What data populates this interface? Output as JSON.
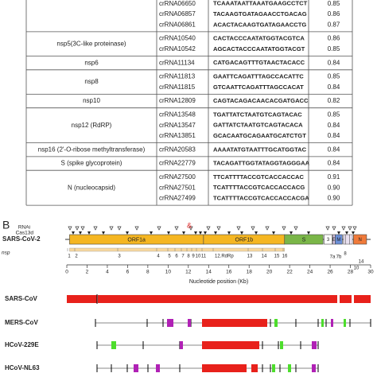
{
  "table": {
    "groups": [
      {
        "rows": [
          [
            "crRNA06650",
            "TCAAATAATTAAATGAAGCCTCT",
            "0.85"
          ],
          [
            "crRNA06857",
            "TACAAGTGATAGAACCTGACAG",
            "0.86"
          ],
          [
            "crRNA06861",
            "ACACTACAAGTGATAGAACCTG",
            "0.87"
          ]
        ]
      },
      {
        "gene": "nsp5(3C-like proteinase)",
        "rows": [
          [
            "crRNA10540",
            "CACTACCCAATATGGTACGTCA",
            "0.86"
          ],
          [
            "crRNA10542",
            "AGCACTACCCAATATGGTACGT",
            "0.85"
          ]
        ]
      },
      {
        "gene": "nsp6",
        "rows": [
          [
            "crRNA11134",
            "CATGACAGTTTGTAACTACACC",
            "0.84"
          ]
        ]
      },
      {
        "gene": "nsp8",
        "rows": [
          [
            "crRNA11813",
            "GAATTCAGATTTAGCCACATTC",
            "0.85"
          ],
          [
            "crRNA11815",
            "GTCAATTCAGATTTAGCCACAT",
            "0.84"
          ]
        ]
      },
      {
        "gene": "nsp10",
        "rows": [
          [
            "crRNA12809",
            "CAGTACAGACAACACGATGACC",
            "0.82"
          ]
        ]
      },
      {
        "gene": "nsp12 (RdRP)",
        "rows": [
          [
            "crRNA13548",
            "TGATTATCTAATGTCAGTACAC",
            "0.85"
          ],
          [
            "crRNA13547",
            "GATTATCTAATGTCAGTACACA",
            "0.84"
          ],
          [
            "crRNA13851",
            "GCACAATGCAGAATGCATCTGT",
            "0.84"
          ]
        ]
      },
      {
        "gene": "nsp16 (2'-O-ribose methyltransferase)",
        "rows": [
          [
            "crRNA20583",
            "AAAATATGTAATTTGCATGGTAC",
            "0.84"
          ]
        ]
      },
      {
        "gene": "S (spike glycoprotein)",
        "rows": [
          [
            "crRNA22779",
            "TACAGATTGGTATAGGTAGGGAA",
            "0.84"
          ]
        ]
      },
      {
        "gene": "N (nucleocapsid)",
        "rows": [
          [
            "crRNA27500",
            "TTCATTTTACCGTCACCACCAC",
            "0.91"
          ],
          [
            "crRNA27501",
            "TCATTTTACCGTCACCACCACG",
            "0.90"
          ],
          [
            "crRNA27499",
            "TCATTTTACCGTCACCACCACGA",
            "0.90"
          ]
        ]
      }
    ]
  },
  "panel_b": {
    "label": "B",
    "rnai": "RNAi",
    "cas13d": "Cas13d",
    "marker": "&",
    "genome": "SARS-CoV-2",
    "genes": [
      "ORF1a",
      "ORF1b",
      "S",
      "3",
      "E",
      "M",
      "N"
    ],
    "subgenes": [
      "7a",
      "7b",
      "8",
      "10",
      "14"
    ],
    "nsp_title": "nsp",
    "nsps": [
      "1",
      "2",
      "3",
      "4",
      "5",
      "6",
      "7",
      "8",
      "9",
      "10",
      "11",
      "12.RdRp",
      "13",
      "14",
      "15",
      "16"
    ],
    "axis_ticks": [
      "0",
      "2",
      "4",
      "6",
      "8",
      "10",
      "12",
      "14",
      "16",
      "18",
      "20",
      "22",
      "24",
      "26",
      "28",
      "30"
    ],
    "axis_title": "Nucleotide position (Kb)",
    "viruses": [
      "SARS-CoV",
      "MERS-CoV",
      "HCoV-229E",
      "HCoV-NL63"
    ]
  }
}
